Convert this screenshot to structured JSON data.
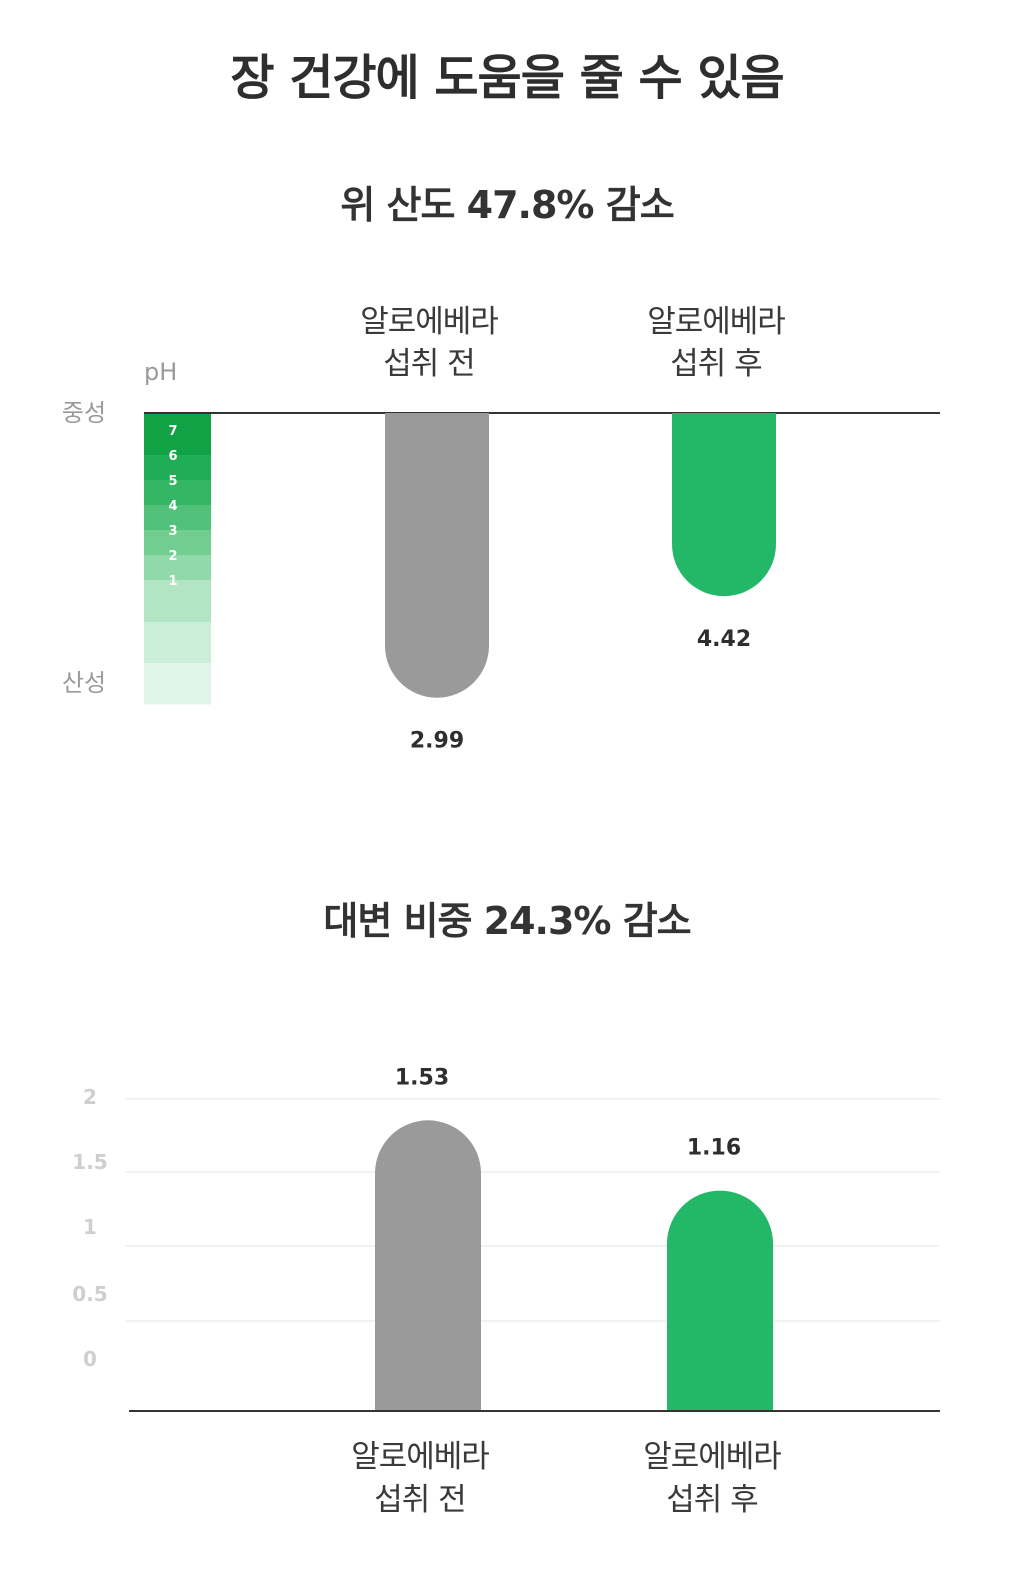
{
  "page_title": "장 건강에 도움을 줄 수 있음",
  "colors": {
    "before": "#9a9a9a",
    "after": "#22b868",
    "axis_line": "#333333",
    "grid": "#e6e6e6"
  },
  "chart_data": [
    {
      "type": "bar",
      "title": "위 산도 47.8% 감소",
      "ylabel": "pH",
      "side_labels": {
        "top": "중성",
        "bottom": "산성"
      },
      "ph_scale": [
        "7",
        "6",
        "5",
        "4",
        "3",
        "2",
        "1"
      ],
      "ph_scale_colors": [
        "#11a245",
        "#1fae55",
        "#33b764",
        "#52c27a",
        "#72cd91",
        "#92d9a9",
        "#b3e5c4",
        "#cbeed8",
        "#e0f5e8"
      ],
      "categories": [
        "알로에베라\n섭취 전",
        "알로에베라\n섭취 후"
      ],
      "values": [
        2.99,
        4.42
      ],
      "value_labels": [
        "2.99",
        "4.42"
      ],
      "orientation": "hanging-from-top"
    },
    {
      "type": "bar",
      "title": "대변 비중 24.3% 감소",
      "categories": [
        "알로에베라\n섭취 전",
        "알로에베라\n섭취 후"
      ],
      "values": [
        1.53,
        1.16
      ],
      "value_labels": [
        "1.53",
        "1.16"
      ],
      "yticks": [
        "2",
        "1.5",
        "1",
        "0.5",
        "0"
      ],
      "ylim": [
        0,
        2
      ],
      "grid": true
    }
  ]
}
